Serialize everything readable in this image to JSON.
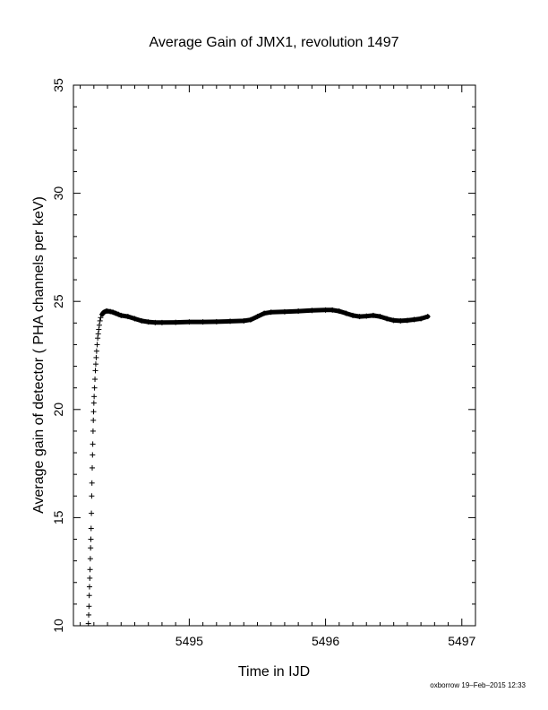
{
  "chart_data": {
    "type": "scatter",
    "title": "Average Gain of JMX1, revolution 1497",
    "xlabel": "Time in IJD",
    "ylabel": "Average gain of detector ( PHA channels per keV)",
    "xlim": [
      5494.15,
      5497.1
    ],
    "ylim": [
      10,
      35
    ],
    "xticks": [
      5495,
      5496,
      5497
    ],
    "yticks": [
      10,
      15,
      20,
      25,
      30,
      35
    ],
    "marker": "+",
    "grid": false,
    "series": [
      {
        "x": [
          5494.26,
          5494.262,
          5494.264,
          5494.266,
          5494.268,
          5494.27,
          5494.272,
          5494.274,
          5494.276,
          5494.278,
          5494.28,
          5494.282,
          5494.284,
          5494.286,
          5494.288,
          5494.29,
          5494.292,
          5494.294,
          5494.296,
          5494.298,
          5494.3,
          5494.302,
          5494.305,
          5494.308,
          5494.311,
          5494.314,
          5494.317,
          5494.32,
          5494.324,
          5494.328,
          5494.332,
          5494.336,
          5494.34,
          5494.345,
          5494.35,
          5494.36,
          5494.37,
          5494.38,
          5494.39,
          5494.4,
          5494.42,
          5494.44,
          5494.46,
          5494.48,
          5494.5,
          5494.55,
          5494.6,
          5494.65,
          5494.7,
          5494.75,
          5494.8,
          5494.9,
          5495.0,
          5495.1,
          5495.2,
          5495.3,
          5495.4,
          5495.45,
          5495.5,
          5495.55,
          5495.6,
          5495.7,
          5495.8,
          5495.9,
          5496.0,
          5496.05,
          5496.1,
          5496.15,
          5496.2,
          5496.25,
          5496.3,
          5496.35,
          5496.4,
          5496.45,
          5496.5,
          5496.55,
          5496.6,
          5496.65,
          5496.7,
          5496.75
        ],
        "y": [
          10.1,
          10.5,
          10.9,
          11.4,
          11.8,
          12.2,
          12.6,
          13.1,
          13.6,
          14.0,
          14.5,
          15.2,
          16.0,
          16.6,
          17.3,
          17.9,
          18.4,
          19.0,
          19.5,
          19.9,
          20.3,
          20.6,
          21.0,
          21.4,
          21.8,
          22.1,
          22.4,
          22.7,
          23.0,
          23.3,
          23.5,
          23.7,
          23.9,
          24.1,
          24.25,
          24.4,
          24.48,
          24.52,
          24.55,
          24.55,
          24.53,
          24.5,
          24.45,
          24.4,
          24.35,
          24.3,
          24.2,
          24.1,
          24.05,
          24.02,
          24.02,
          24.03,
          24.05,
          24.05,
          24.06,
          24.08,
          24.1,
          24.15,
          24.3,
          24.45,
          24.5,
          24.52,
          24.55,
          24.58,
          24.6,
          24.6,
          24.55,
          24.45,
          24.35,
          24.3,
          24.32,
          24.35,
          24.3,
          24.2,
          24.12,
          24.1,
          24.12,
          24.16,
          24.2,
          24.3
        ]
      }
    ]
  },
  "footer": "oxborrow 19–Feb–2015 12:33"
}
